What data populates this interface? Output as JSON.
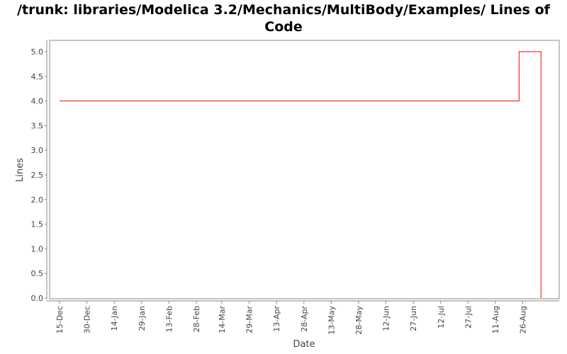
{
  "chart_data": {
    "type": "line",
    "title": "/trunk: libraries/Modelica 3.2/Mechanics/MultiBody/Examples/ Lines of Code",
    "xlabel": "Date",
    "ylabel": "Lines",
    "ylim": [
      0,
      5.0
    ],
    "yticks": [
      "0.0",
      "0.5",
      "1.0",
      "1.5",
      "2.0",
      "2.5",
      "3.0",
      "3.5",
      "4.0",
      "4.5",
      "5.0"
    ],
    "xticks": [
      "15-Dec",
      "30-Dec",
      "14-Jan",
      "29-Jan",
      "13-Feb",
      "28-Feb",
      "14-Mar",
      "29-Mar",
      "13-Apr",
      "28-Apr",
      "13-May",
      "28-May",
      "12-Jun",
      "27-Jun",
      "12-Jul",
      "27-Jul",
      "11-Aug",
      "26-Aug"
    ],
    "grid": false,
    "step": true,
    "series": [
      {
        "color": "#ff0000",
        "points": [
          [
            "15-Dec",
            4
          ],
          [
            "24-Aug",
            5
          ],
          [
            "5-Sep",
            0
          ]
        ]
      }
    ]
  }
}
